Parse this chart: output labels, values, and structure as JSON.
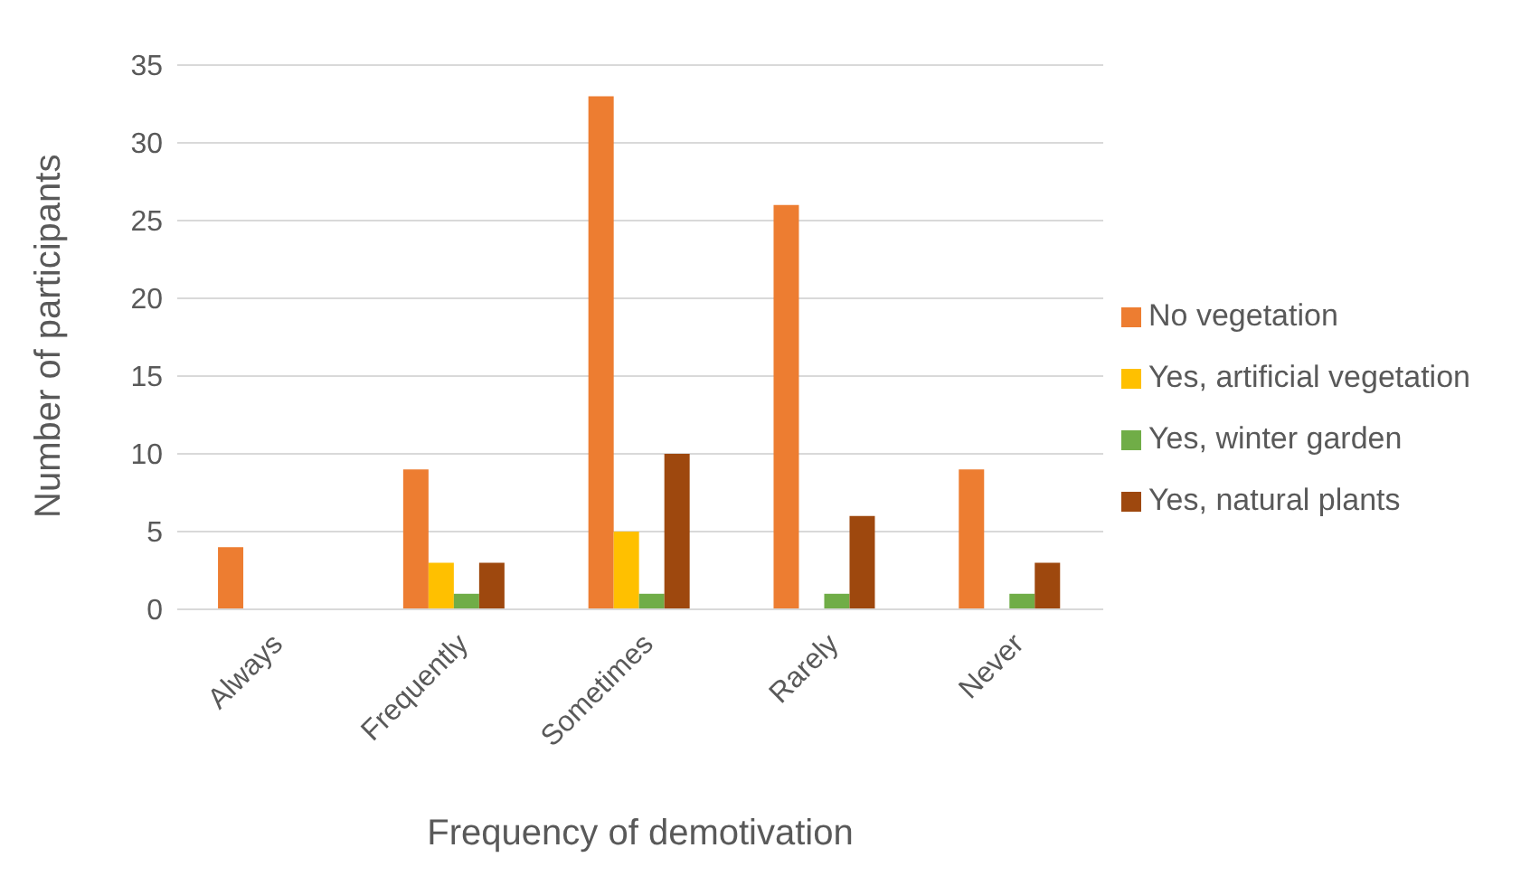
{
  "chart_data": {
    "type": "bar",
    "xlabel": "Frequency of demotivation",
    "ylabel": "Number of participants",
    "categories": [
      "Always",
      "Frequently",
      "Sometimes",
      "Rarely",
      "Never"
    ],
    "series": [
      {
        "name": "No vegetation",
        "color": "#ed7d31",
        "values": [
          4,
          9,
          33,
          26,
          9
        ]
      },
      {
        "name": "Yes, artificial vegetation",
        "color": "#ffc000",
        "values": [
          0,
          3,
          5,
          0,
          0
        ]
      },
      {
        "name": "Yes, winter garden",
        "color": "#70ad47",
        "values": [
          0,
          1,
          1,
          1,
          1
        ]
      },
      {
        "name": "Yes, natural plants",
        "color": "#9e480e",
        "values": [
          0,
          3,
          10,
          6,
          3
        ]
      }
    ],
    "ylim": [
      0,
      35
    ],
    "yticks": [
      0,
      5,
      10,
      15,
      20,
      25,
      30,
      35
    ],
    "grid": "y",
    "legend": "right"
  }
}
